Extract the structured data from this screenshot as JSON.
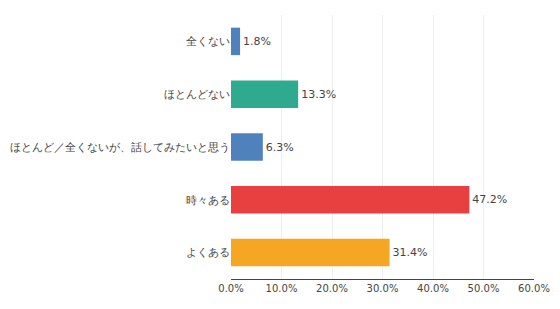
{
  "chart_data": {
    "type": "bar",
    "orientation": "horizontal",
    "categories": [
      "全くない",
      "ほとんどない",
      "ほとんど／全くないが、話してみたいと思う",
      "時々ある",
      "よくある"
    ],
    "values": [
      1.8,
      13.3,
      6.3,
      47.2,
      31.4
    ],
    "colors": [
      "#4f81bd",
      "#2eab8e",
      "#4f81bd",
      "#e84040",
      "#f5a623"
    ],
    "data_labels": true,
    "value_labels": [
      "1.8%",
      "13.3%",
      "6.3%",
      "47.2%",
      "31.4%"
    ],
    "xlim": [
      0,
      60
    ],
    "xticks": [
      {
        "value": 0,
        "label": "0.0%"
      },
      {
        "value": 10,
        "label": "10.0%"
      },
      {
        "value": 20,
        "label": "20.0%"
      },
      {
        "value": 30,
        "label": "30.0%"
      },
      {
        "value": 40,
        "label": "40.0%"
      },
      {
        "value": 50,
        "label": "50.0%"
      },
      {
        "value": 60,
        "label": "60.0%"
      }
    ],
    "grid": true
  }
}
